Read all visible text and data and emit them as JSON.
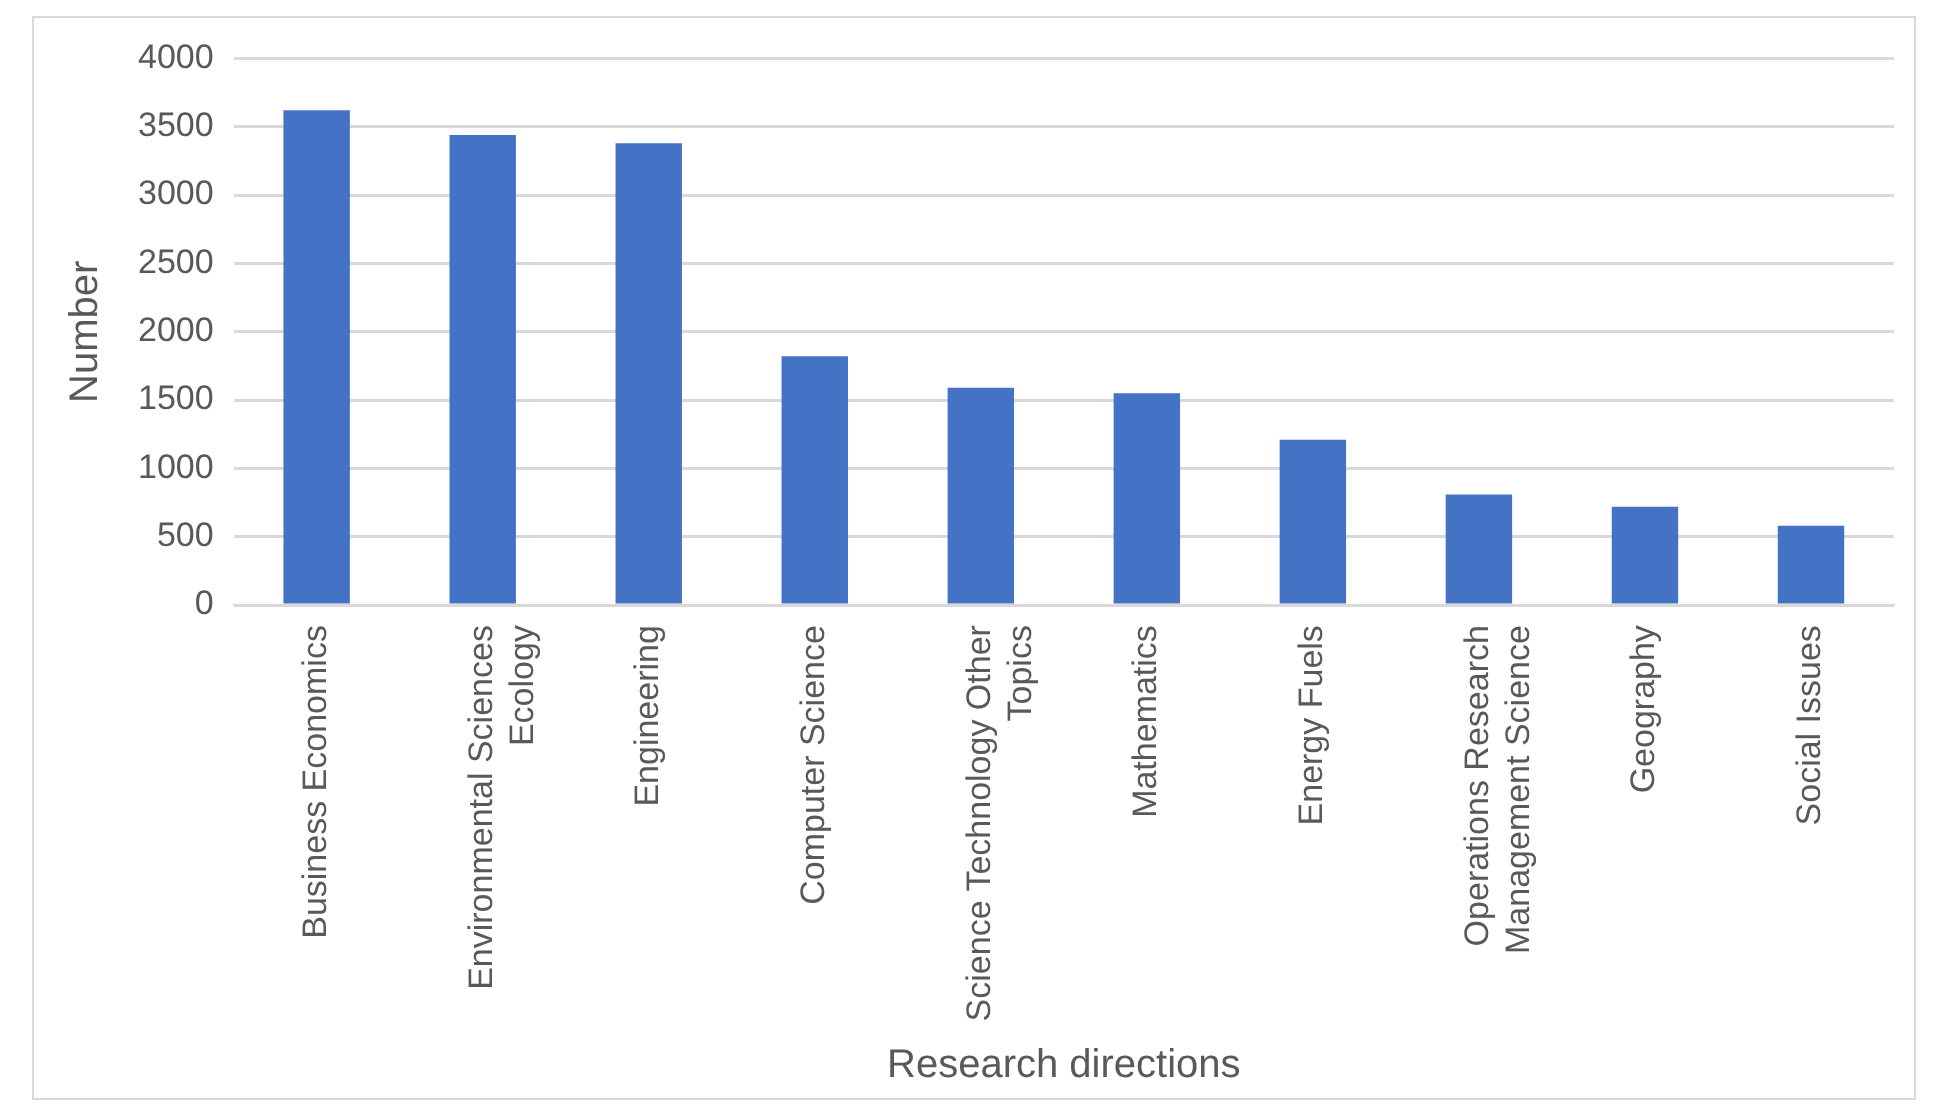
{
  "chart_data": {
    "type": "bar",
    "xlabel": "Research directions",
    "ylabel": "Number",
    "categories": [
      "Business Economics",
      "Environmental Sciences Ecology",
      "Engineering",
      "Computer Science",
      "Science Technology Other Topics",
      "Mathematics",
      "Energy Fuels",
      "Operations Research Management Science",
      "Geography",
      "Social Issues"
    ],
    "values": [
      3620,
      3440,
      3380,
      1820,
      1590,
      1550,
      1210,
      810,
      720,
      580
    ],
    "color": "#4472c4",
    "ylim": [
      0,
      4000
    ],
    "yticks": [
      0,
      500,
      1000,
      1500,
      2000,
      2500,
      3000,
      3500,
      4000
    ],
    "grid": "y",
    "legend": false
  }
}
